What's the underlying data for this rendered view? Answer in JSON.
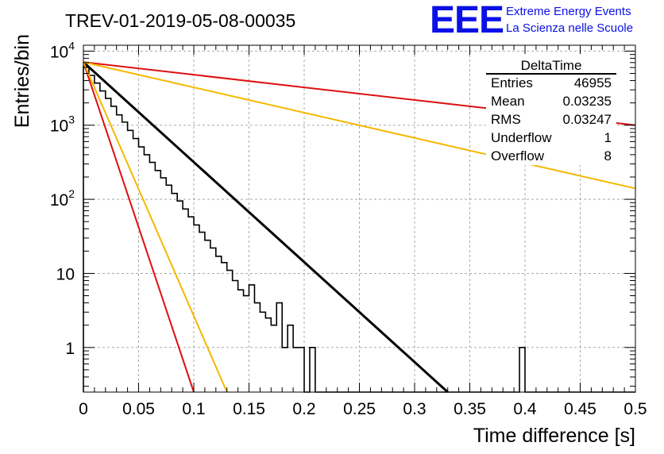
{
  "title": "TREV-01-2019-05-08-00035",
  "logo": {
    "mark": "EEE",
    "line1": "Extreme Energy Events",
    "line2": "La Scienza nelle Scuole",
    "color": "#0a10e6"
  },
  "chart_data": {
    "type": "histogram",
    "xlabel": "Time difference [s]",
    "ylabel": "Entries/bin",
    "xlim": [
      0,
      0.5
    ],
    "ylim": [
      0.25,
      12000
    ],
    "y_scale": "log",
    "grid": true,
    "x_ticks": [
      {
        "v": 0,
        "label": "0"
      },
      {
        "v": 0.05,
        "label": "0.05"
      },
      {
        "v": 0.1,
        "label": "0.1"
      },
      {
        "v": 0.15,
        "label": "0.15"
      },
      {
        "v": 0.2,
        "label": "0.2"
      },
      {
        "v": 0.25,
        "label": "0.25"
      },
      {
        "v": 0.3,
        "label": "0.3"
      },
      {
        "v": 0.35,
        "label": "0.35"
      },
      {
        "v": 0.4,
        "label": "0.4"
      },
      {
        "v": 0.45,
        "label": "0.45"
      },
      {
        "v": 0.5,
        "label": "0.5"
      }
    ],
    "y_ticks": [
      {
        "v": 1,
        "label": "1"
      },
      {
        "v": 10,
        "label": "10"
      },
      {
        "v": 100,
        "label": "10",
        "exp": "2"
      },
      {
        "v": 1000,
        "label": "10",
        "exp": "3"
      },
      {
        "v": 10000,
        "label": "10",
        "exp": "4"
      }
    ],
    "histogram": {
      "bin_width": 0.005,
      "color": "#000000",
      "values": [
        6200,
        4700,
        3700,
        2900,
        2300,
        1800,
        1380,
        1100,
        850,
        660,
        510,
        400,
        315,
        245,
        195,
        155,
        120,
        95,
        74,
        58,
        45,
        36,
        28,
        22,
        17,
        14,
        11,
        8,
        6,
        5,
        7,
        4,
        3,
        2.5,
        2,
        4,
        1,
        2,
        1,
        1,
        0,
        1,
        0,
        0,
        0,
        0,
        0,
        0,
        0,
        0,
        0,
        0,
        0,
        0,
        0,
        0,
        0,
        0,
        0,
        0,
        0,
        0,
        0,
        0,
        0,
        0,
        0,
        0,
        0,
        0,
        0,
        0,
        0,
        0,
        0,
        0,
        0,
        0,
        0,
        1,
        0,
        0,
        0,
        0,
        0,
        0,
        0,
        0,
        0,
        0,
        0,
        0,
        0,
        0,
        0,
        0,
        0,
        0,
        0,
        0
      ]
    },
    "fit_lines": [
      {
        "color": "#000000",
        "width": 3,
        "points": [
          [
            0,
            7100
          ],
          [
            0.33,
            0.25
          ]
        ]
      },
      {
        "color": "#dd0f0f",
        "width": 2,
        "points": [
          [
            0,
            7100
          ],
          [
            0.5,
            1000
          ]
        ]
      },
      {
        "color": "#f5b800",
        "width": 2,
        "points": [
          [
            0,
            7100
          ],
          [
            0.5,
            140
          ]
        ]
      },
      {
        "color": "#dd0f0f",
        "width": 2,
        "points": [
          [
            0,
            7100
          ],
          [
            0.1,
            0.25
          ]
        ]
      },
      {
        "color": "#f5b800",
        "width": 2,
        "points": [
          [
            0,
            7100
          ],
          [
            0.13,
            0.25
          ]
        ]
      }
    ],
    "stats_box": {
      "title": "DeltaTime",
      "rows": [
        {
          "label": "Entries",
          "value": "46955"
        },
        {
          "label": "Mean",
          "value": "0.03235"
        },
        {
          "label": "RMS",
          "value": "0.03247"
        },
        {
          "label": "Underflow",
          "value": "1"
        },
        {
          "label": "Overflow",
          "value": "8"
        }
      ]
    }
  }
}
